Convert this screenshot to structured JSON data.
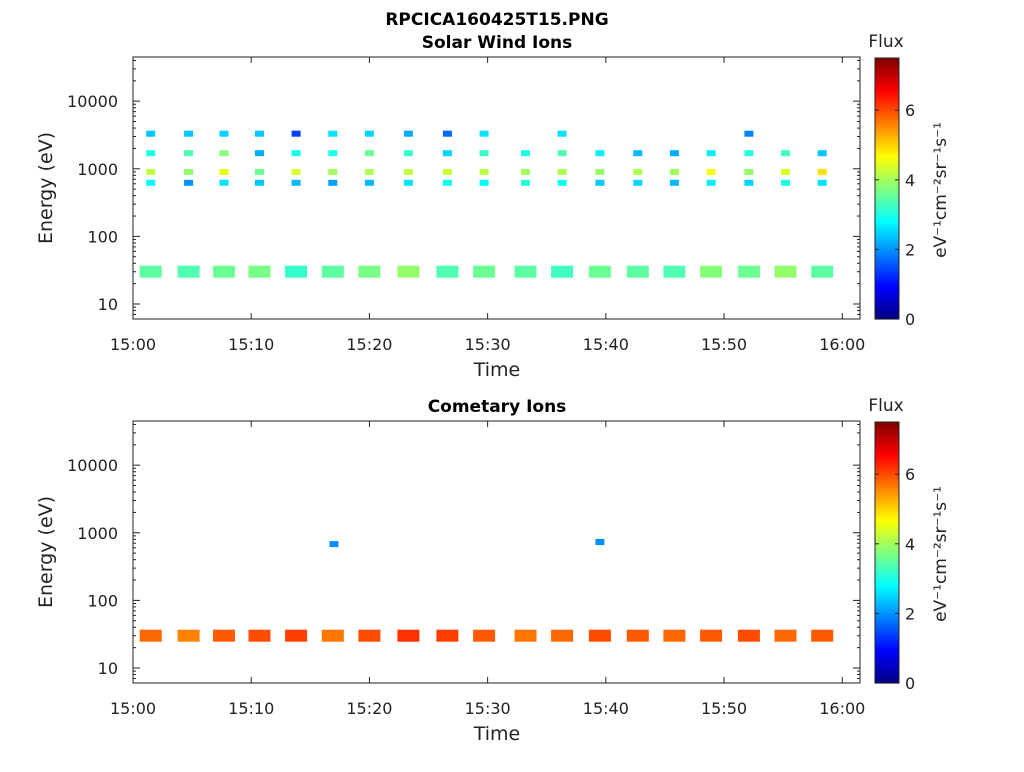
{
  "figure": {
    "title": "RPCICA160425T15.PNG"
  },
  "chart_data": [
    {
      "type": "heatmap",
      "title": "Solar Wind Ions",
      "xlabel": "Time",
      "ylabel": "Energy (eV)",
      "x_ticks": [
        "15:00",
        "15:10",
        "15:20",
        "15:30",
        "15:40",
        "15:50",
        "16:00"
      ],
      "xlim_minutes": [
        0,
        61.5
      ],
      "y_scale": "log",
      "ylim": [
        6,
        45000
      ],
      "y_ticks": [
        "10",
        "100",
        "1000",
        "10000"
      ],
      "colorbar": {
        "label": "Flux",
        "unit": "eV⁻¹cm⁻²sr⁻¹s⁻¹",
        "range": [
          0,
          7.5
        ],
        "ticks": [
          "0",
          "2",
          "4",
          "6"
        ]
      },
      "grid": false,
      "blocks_minutes": [
        1.5,
        4.7,
        7.7,
        10.7,
        13.8,
        16.9,
        20.0,
        23.3,
        26.6,
        29.7,
        33.2,
        36.3,
        39.5,
        42.7,
        45.8,
        48.9,
        52.1,
        55.2,
        58.3
      ],
      "points": [
        {
          "t": 1.5,
          "e": 3300,
          "v": 2.4
        },
        {
          "t": 1.5,
          "e": 1700,
          "v": 3.0
        },
        {
          "t": 1.5,
          "e": 900,
          "v": 4.2
        },
        {
          "t": 1.5,
          "e": 620,
          "v": 2.8
        },
        {
          "t": 1.5,
          "e": 30,
          "v": 3.5
        },
        {
          "t": 4.7,
          "e": 3300,
          "v": 2.4
        },
        {
          "t": 4.7,
          "e": 1700,
          "v": 3.4
        },
        {
          "t": 4.7,
          "e": 900,
          "v": 3.9
        },
        {
          "t": 4.7,
          "e": 620,
          "v": 2.0
        },
        {
          "t": 4.7,
          "e": 30,
          "v": 3.4
        },
        {
          "t": 7.7,
          "e": 3300,
          "v": 2.5
        },
        {
          "t": 7.7,
          "e": 1700,
          "v": 3.8
        },
        {
          "t": 7.7,
          "e": 900,
          "v": 4.5
        },
        {
          "t": 7.7,
          "e": 620,
          "v": 2.6
        },
        {
          "t": 7.7,
          "e": 30,
          "v": 3.6
        },
        {
          "t": 10.7,
          "e": 3300,
          "v": 2.4
        },
        {
          "t": 10.7,
          "e": 1700,
          "v": 2.2
        },
        {
          "t": 10.7,
          "e": 900,
          "v": 3.6
        },
        {
          "t": 10.7,
          "e": 620,
          "v": 2.4
        },
        {
          "t": 10.7,
          "e": 30,
          "v": 3.7
        },
        {
          "t": 13.8,
          "e": 3300,
          "v": 1.4
        },
        {
          "t": 13.8,
          "e": 1700,
          "v": 2.9
        },
        {
          "t": 13.8,
          "e": 900,
          "v": 4.4
        },
        {
          "t": 13.8,
          "e": 620,
          "v": 2.3
        },
        {
          "t": 13.8,
          "e": 30,
          "v": 3.2
        },
        {
          "t": 16.9,
          "e": 3300,
          "v": 2.6
        },
        {
          "t": 16.9,
          "e": 1700,
          "v": 3.0
        },
        {
          "t": 16.9,
          "e": 900,
          "v": 4.0
        },
        {
          "t": 16.9,
          "e": 620,
          "v": 2.1
        },
        {
          "t": 16.9,
          "e": 30,
          "v": 3.5
        },
        {
          "t": 20.0,
          "e": 3300,
          "v": 2.5
        },
        {
          "t": 20.0,
          "e": 1700,
          "v": 3.6
        },
        {
          "t": 20.0,
          "e": 900,
          "v": 4.1
        },
        {
          "t": 20.0,
          "e": 620,
          "v": 2.3
        },
        {
          "t": 20.0,
          "e": 30,
          "v": 3.7
        },
        {
          "t": 23.3,
          "e": 3300,
          "v": 2.2
        },
        {
          "t": 23.3,
          "e": 1700,
          "v": 3.2
        },
        {
          "t": 23.3,
          "e": 900,
          "v": 4.2
        },
        {
          "t": 23.3,
          "e": 620,
          "v": 2.6
        },
        {
          "t": 23.3,
          "e": 30,
          "v": 3.9
        },
        {
          "t": 26.6,
          "e": 3300,
          "v": 1.7
        },
        {
          "t": 26.6,
          "e": 1700,
          "v": 2.5
        },
        {
          "t": 26.6,
          "e": 900,
          "v": 4.3
        },
        {
          "t": 26.6,
          "e": 620,
          "v": 2.9
        },
        {
          "t": 26.6,
          "e": 30,
          "v": 3.4
        },
        {
          "t": 29.7,
          "e": 3300,
          "v": 2.6
        },
        {
          "t": 29.7,
          "e": 1700,
          "v": 3.2
        },
        {
          "t": 29.7,
          "e": 900,
          "v": 4.2
        },
        {
          "t": 29.7,
          "e": 620,
          "v": 2.8
        },
        {
          "t": 29.7,
          "e": 30,
          "v": 3.6
        },
        {
          "t": 33.2,
          "e": 1700,
          "v": 3.0
        },
        {
          "t": 33.2,
          "e": 900,
          "v": 4.0
        },
        {
          "t": 33.2,
          "e": 620,
          "v": 3.1
        },
        {
          "t": 33.2,
          "e": 30,
          "v": 3.5
        },
        {
          "t": 36.3,
          "e": 3300,
          "v": 2.6
        },
        {
          "t": 36.3,
          "e": 1700,
          "v": 3.4
        },
        {
          "t": 36.3,
          "e": 900,
          "v": 4.1
        },
        {
          "t": 36.3,
          "e": 620,
          "v": 2.9
        },
        {
          "t": 36.3,
          "e": 30,
          "v": 3.3
        },
        {
          "t": 39.5,
          "e": 1700,
          "v": 2.7
        },
        {
          "t": 39.5,
          "e": 900,
          "v": 3.9
        },
        {
          "t": 39.5,
          "e": 620,
          "v": 2.4
        },
        {
          "t": 39.5,
          "e": 30,
          "v": 3.6
        },
        {
          "t": 42.7,
          "e": 1700,
          "v": 2.3
        },
        {
          "t": 42.7,
          "e": 900,
          "v": 4.1
        },
        {
          "t": 42.7,
          "e": 620,
          "v": 2.5
        },
        {
          "t": 42.7,
          "e": 30,
          "v": 3.5
        },
        {
          "t": 45.8,
          "e": 1700,
          "v": 2.2
        },
        {
          "t": 45.8,
          "e": 900,
          "v": 4.0
        },
        {
          "t": 45.8,
          "e": 620,
          "v": 2.3
        },
        {
          "t": 45.8,
          "e": 30,
          "v": 3.4
        },
        {
          "t": 48.9,
          "e": 1700,
          "v": 2.7
        },
        {
          "t": 48.9,
          "e": 900,
          "v": 4.6
        },
        {
          "t": 48.9,
          "e": 620,
          "v": 2.7
        },
        {
          "t": 48.9,
          "e": 30,
          "v": 3.8
        },
        {
          "t": 52.1,
          "e": 3300,
          "v": 1.9
        },
        {
          "t": 52.1,
          "e": 1700,
          "v": 3.1
        },
        {
          "t": 52.1,
          "e": 900,
          "v": 3.9
        },
        {
          "t": 52.1,
          "e": 620,
          "v": 2.5
        },
        {
          "t": 52.1,
          "e": 30,
          "v": 3.6
        },
        {
          "t": 55.2,
          "e": 1700,
          "v": 3.3
        },
        {
          "t": 55.2,
          "e": 900,
          "v": 4.4
        },
        {
          "t": 55.2,
          "e": 620,
          "v": 3.0
        },
        {
          "t": 55.2,
          "e": 30,
          "v": 3.9
        },
        {
          "t": 58.3,
          "e": 1700,
          "v": 2.4
        },
        {
          "t": 58.3,
          "e": 900,
          "v": 4.9
        },
        {
          "t": 58.3,
          "e": 620,
          "v": 2.6
        },
        {
          "t": 58.3,
          "e": 30,
          "v": 3.5
        }
      ]
    },
    {
      "type": "heatmap",
      "title": "Cometary Ions",
      "xlabel": "Time",
      "ylabel": "Energy (eV)",
      "x_ticks": [
        "15:00",
        "15:10",
        "15:20",
        "15:30",
        "15:40",
        "15:50",
        "16:00"
      ],
      "xlim_minutes": [
        0,
        61.5
      ],
      "y_scale": "log",
      "ylim": [
        6,
        45000
      ],
      "y_ticks": [
        "10",
        "100",
        "1000",
        "10000"
      ],
      "colorbar": {
        "label": "Flux",
        "unit": "eV⁻¹cm⁻²sr⁻¹s⁻¹",
        "range": [
          0,
          7.5
        ],
        "ticks": [
          "0",
          "2",
          "4",
          "6"
        ]
      },
      "grid": false,
      "blocks_minutes": [
        1.5,
        4.7,
        7.7,
        10.7,
        13.8,
        16.9,
        20.0,
        23.3,
        26.6,
        29.7,
        33.2,
        36.3,
        39.5,
        42.7,
        45.8,
        48.9,
        52.1,
        55.2,
        58.3
      ],
      "points": [
        {
          "t": 1.5,
          "e": 30,
          "v": 5.8
        },
        {
          "t": 4.7,
          "e": 30,
          "v": 5.6
        },
        {
          "t": 7.7,
          "e": 30,
          "v": 5.9
        },
        {
          "t": 10.7,
          "e": 30,
          "v": 6.0
        },
        {
          "t": 13.8,
          "e": 30,
          "v": 6.1
        },
        {
          "t": 16.9,
          "e": 30,
          "v": 5.7
        },
        {
          "t": 20.0,
          "e": 30,
          "v": 6.0
        },
        {
          "t": 23.3,
          "e": 30,
          "v": 6.2
        },
        {
          "t": 26.6,
          "e": 30,
          "v": 6.1
        },
        {
          "t": 29.7,
          "e": 30,
          "v": 5.9
        },
        {
          "t": 33.2,
          "e": 30,
          "v": 5.7
        },
        {
          "t": 36.3,
          "e": 30,
          "v": 5.8
        },
        {
          "t": 39.5,
          "e": 30,
          "v": 6.0
        },
        {
          "t": 42.7,
          "e": 30,
          "v": 5.9
        },
        {
          "t": 45.8,
          "e": 30,
          "v": 5.8
        },
        {
          "t": 48.9,
          "e": 30,
          "v": 5.9
        },
        {
          "t": 52.1,
          "e": 30,
          "v": 6.0
        },
        {
          "t": 55.2,
          "e": 30,
          "v": 5.8
        },
        {
          "t": 58.3,
          "e": 30,
          "v": 5.9
        },
        {
          "t": 17.0,
          "e": 680,
          "v": 2.0
        },
        {
          "t": 39.5,
          "e": 730,
          "v": 2.0
        }
      ]
    }
  ]
}
